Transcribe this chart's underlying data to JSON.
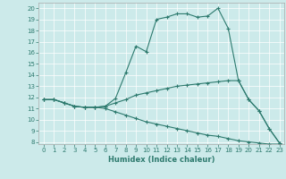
{
  "xlabel": "Humidex (Indice chaleur)",
  "bg_color": "#cceaea",
  "line_color": "#2d7a6e",
  "grid_color": "#ffffff",
  "xlim": [
    -0.5,
    23.5
  ],
  "ylim": [
    7.8,
    20.5
  ],
  "yticks": [
    8,
    9,
    10,
    11,
    12,
    13,
    14,
    15,
    16,
    17,
    18,
    19,
    20
  ],
  "xticks": [
    0,
    1,
    2,
    3,
    4,
    5,
    6,
    7,
    8,
    9,
    10,
    11,
    12,
    13,
    14,
    15,
    16,
    17,
    18,
    19,
    20,
    21,
    22,
    23
  ],
  "line1_x": [
    0,
    1,
    2,
    3,
    4,
    5,
    6,
    7,
    8,
    9,
    10,
    11,
    12,
    13,
    14,
    15,
    16,
    17,
    18,
    19,
    20,
    21,
    22,
    23
  ],
  "line1_y": [
    11.8,
    11.8,
    11.5,
    11.2,
    11.1,
    11.1,
    11.2,
    11.9,
    14.2,
    16.6,
    16.1,
    19.0,
    19.2,
    19.5,
    19.5,
    19.2,
    19.3,
    20.0,
    18.2,
    13.5,
    11.8,
    10.8,
    9.2,
    7.9
  ],
  "line2_x": [
    0,
    1,
    2,
    3,
    4,
    5,
    6,
    7,
    8,
    9,
    10,
    11,
    12,
    13,
    14,
    15,
    16,
    17,
    18,
    19,
    20,
    21,
    22,
    23
  ],
  "line2_y": [
    11.8,
    11.8,
    11.5,
    11.2,
    11.1,
    11.1,
    11.2,
    11.5,
    11.8,
    12.2,
    12.4,
    12.6,
    12.8,
    13.0,
    13.1,
    13.2,
    13.3,
    13.4,
    13.5,
    13.5,
    11.8,
    10.8,
    9.2,
    7.9
  ],
  "line3_x": [
    0,
    1,
    2,
    3,
    4,
    5,
    6,
    7,
    8,
    9,
    10,
    11,
    12,
    13,
    14,
    15,
    16,
    17,
    18,
    19,
    20,
    21,
    22,
    23
  ],
  "line3_y": [
    11.8,
    11.8,
    11.5,
    11.2,
    11.1,
    11.1,
    11.0,
    10.7,
    10.4,
    10.1,
    9.8,
    9.6,
    9.4,
    9.2,
    9.0,
    8.8,
    8.6,
    8.5,
    8.3,
    8.1,
    8.0,
    7.9,
    7.8,
    7.8
  ]
}
